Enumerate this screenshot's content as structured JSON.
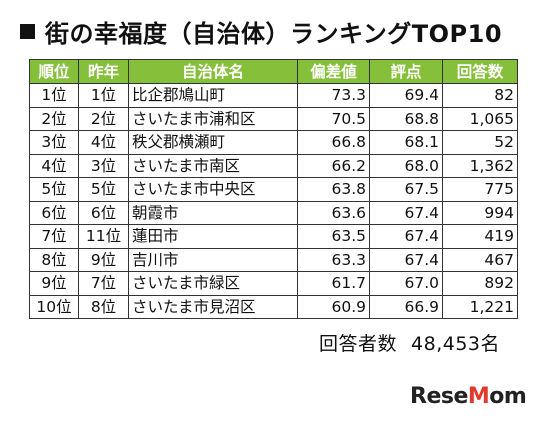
{
  "title": "街の幸福度（自治体）ランキングTOP10",
  "table": {
    "headers": [
      "順位",
      "昨年",
      "自治体名",
      "偏差値",
      "評点",
      "回答数"
    ],
    "rows": [
      {
        "rank": "1位",
        "last_year": "1位",
        "name": "比企郡鳩山町",
        "deviation": "73.3",
        "score": "69.4",
        "responses": "82"
      },
      {
        "rank": "2位",
        "last_year": "2位",
        "name": "さいたま市浦和区",
        "deviation": "70.5",
        "score": "68.8",
        "responses": "1,065"
      },
      {
        "rank": "3位",
        "last_year": "4位",
        "name": "秩父郡横瀬町",
        "deviation": "66.8",
        "score": "68.1",
        "responses": "52"
      },
      {
        "rank": "4位",
        "last_year": "3位",
        "name": "さいたま市南区",
        "deviation": "66.2",
        "score": "68.0",
        "responses": "1,362"
      },
      {
        "rank": "5位",
        "last_year": "5位",
        "name": "さいたま市中央区",
        "deviation": "63.8",
        "score": "67.5",
        "responses": "775"
      },
      {
        "rank": "6位",
        "last_year": "6位",
        "name": "朝霞市",
        "deviation": "63.6",
        "score": "67.4",
        "responses": "994"
      },
      {
        "rank": "7位",
        "last_year": "11位",
        "name": "蓮田市",
        "deviation": "63.5",
        "score": "67.4",
        "responses": "419"
      },
      {
        "rank": "8位",
        "last_year": "9位",
        "name": "吉川市",
        "deviation": "63.3",
        "score": "67.4",
        "responses": "467"
      },
      {
        "rank": "9位",
        "last_year": "7位",
        "name": "さいたま市緑区",
        "deviation": "61.7",
        "score": "67.0",
        "responses": "892"
      },
      {
        "rank": "10位",
        "last_year": "8位",
        "name": "さいたま市見沼区",
        "deviation": "60.9",
        "score": "66.9",
        "responses": "1,221"
      }
    ]
  },
  "respondents": {
    "label": "回答者数",
    "value": "48,453名"
  },
  "logo": {
    "text": "ReseMom"
  },
  "colors": {
    "header_bg": "#86bf3a",
    "header_text": "#ffffff",
    "logo_accent": "#e23b2d"
  }
}
